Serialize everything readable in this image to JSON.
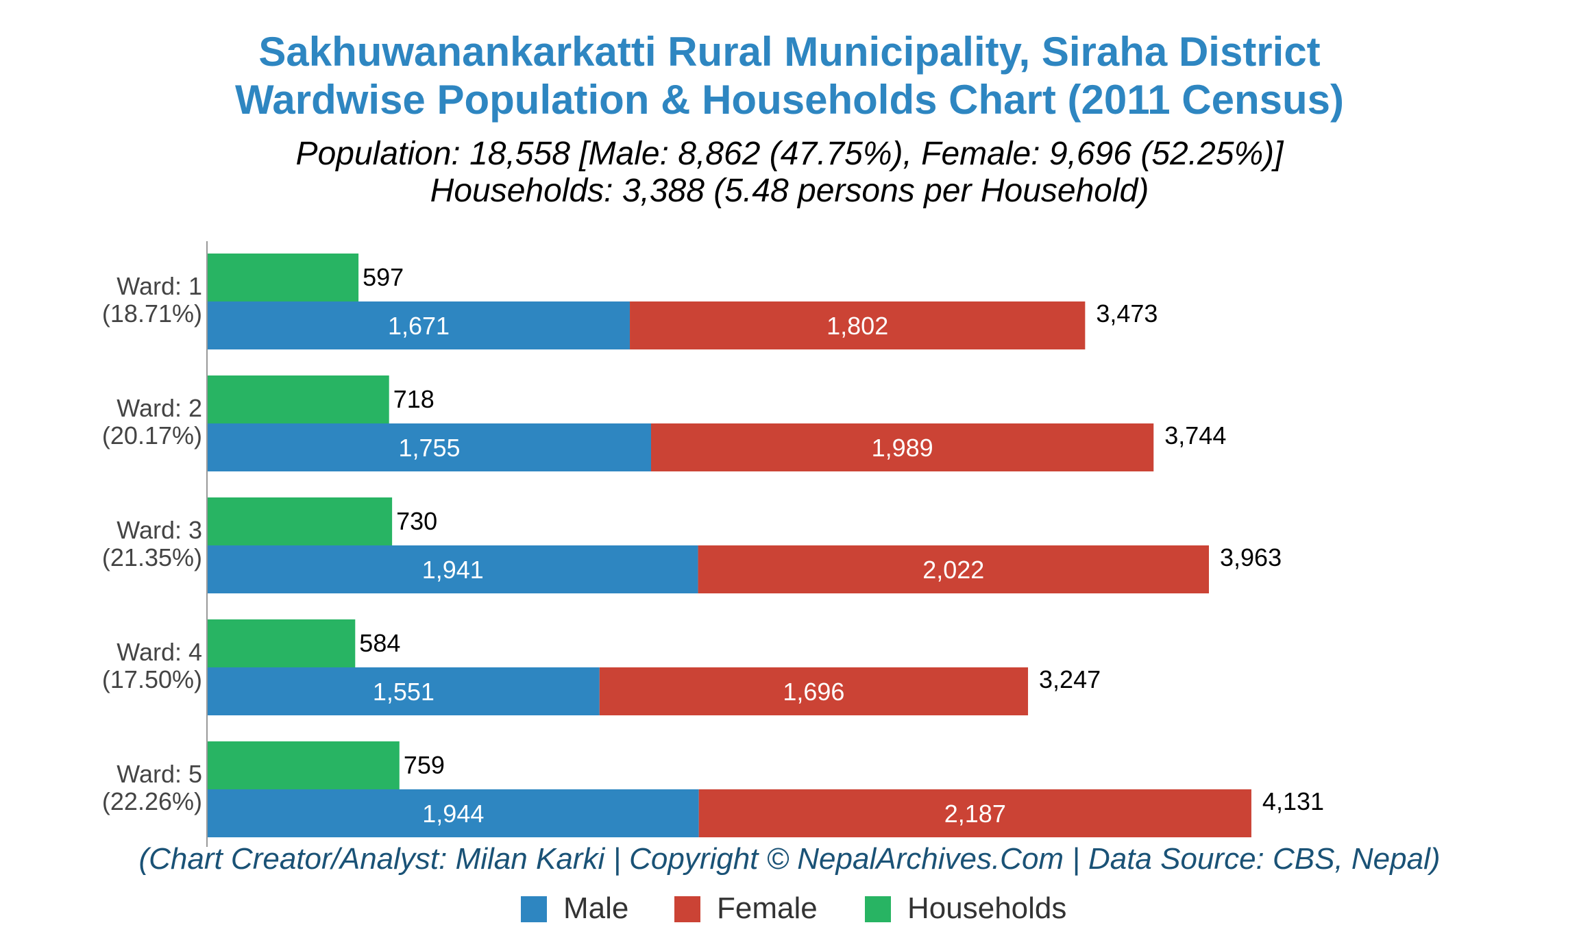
{
  "chart_data": {
    "type": "bar",
    "orientation": "horizontal",
    "stacked_population": true,
    "title_line1": "Sakhuwanankarkatti Rural Municipality, Siraha District",
    "title_line2": "Wardwise Population & Households Chart (2011 Census)",
    "subtitle_line1": "Population: 18,558 [Male: 8,862 (47.75%), Female: 9,696 (52.25%)]",
    "subtitle_line2": "Households: 3,388 (5.48 persons per Household)",
    "credit": "(Chart Creator/Analyst: Milan Karki | Copyright © NepalArchives.Com | Data Source: CBS, Nepal)",
    "categories": [
      "Ward: 1",
      "Ward: 2",
      "Ward: 3",
      "Ward: 4",
      "Ward: 5"
    ],
    "category_shares": [
      "(18.71%)",
      "(20.17%)",
      "(21.35%)",
      "(17.50%)",
      "(22.26%)"
    ],
    "series": [
      {
        "name": "Male",
        "color": "#2e86c1",
        "values": [
          1671,
          1755,
          1941,
          1551,
          1944
        ],
        "labels": [
          "1,671",
          "1,755",
          "1,941",
          "1,551",
          "1,944"
        ]
      },
      {
        "name": "Female",
        "color": "#cb4335",
        "values": [
          1802,
          1989,
          2022,
          1696,
          2187
        ],
        "labels": [
          "1,802",
          "1,989",
          "2,022",
          "1,696",
          "2,187"
        ]
      },
      {
        "name": "Households",
        "color": "#28b463",
        "values": [
          597,
          718,
          730,
          584,
          759
        ],
        "labels": [
          "597",
          "718",
          "730",
          "584",
          "759"
        ]
      }
    ],
    "totals": [
      3473,
      3744,
      3963,
      3247,
      4131
    ],
    "total_labels": [
      "3,473",
      "3,744",
      "3,963",
      "3,247",
      "4,131"
    ],
    "xlim": [
      0,
      4600
    ],
    "grid": false,
    "legend_position": "bottom"
  }
}
